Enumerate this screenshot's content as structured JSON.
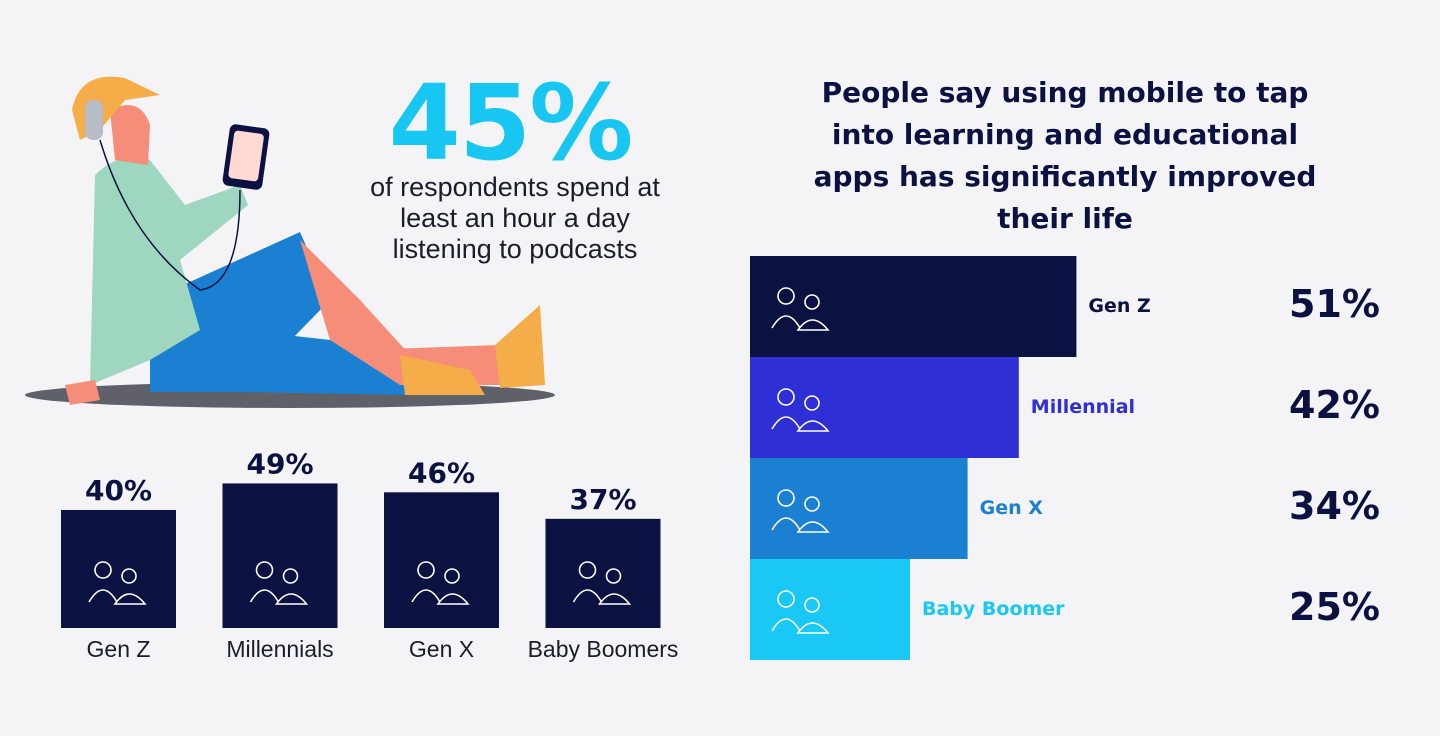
{
  "stat": {
    "label": "45%",
    "text": "of respondents spend at least an hour a day listening to podcasts"
  },
  "chart_data": [
    {
      "type": "bar",
      "orientation": "vertical",
      "categories": [
        "Gen Z",
        "Millennials",
        "Gen X",
        "Baby Boomers"
      ],
      "values": [
        40,
        49,
        46,
        37
      ],
      "value_labels": [
        "40%",
        "49%",
        "46%",
        "37%"
      ],
      "color": "#0b1140"
    },
    {
      "type": "bar",
      "orientation": "horizontal",
      "title": "People say using mobile to tap into learning and educational apps  has significantly improved their life",
      "categories": [
        "Gen Z",
        "Millennial",
        "Gen X",
        "Baby Boomer"
      ],
      "values": [
        51,
        42,
        34,
        25
      ],
      "value_labels": [
        "51%",
        "42%",
        "34%",
        "25%"
      ],
      "colors": [
        "#0b1140",
        "#2e2fd4",
        "#1b80d2",
        "#19c8f5"
      ]
    }
  ]
}
